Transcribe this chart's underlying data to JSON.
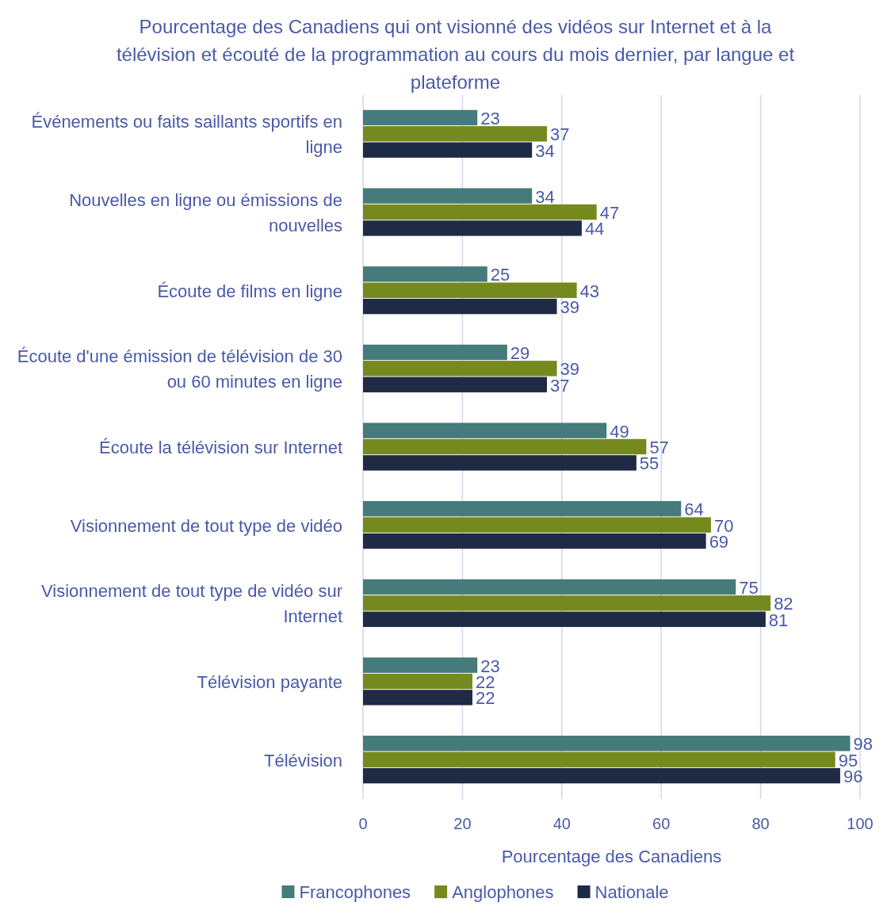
{
  "chart_data": {
    "type": "bar",
    "orientation": "horizontal",
    "title": "Pourcentage des Canadiens qui ont visionné des vidéos sur Internet et à la télévision et écouté de la programmation au cours du mois dernier, par langue et plateforme",
    "xlabel": "Pourcentage des Canadiens",
    "categories": [
      "Événements ou faits saillants sportifs en ligne",
      "Nouvelles en ligne ou émissions de nouvelles",
      "Écoute de films en ligne",
      "Écoute d'une émission de télévision de 30 ou 60 minutes en ligne",
      "Écoute la télévision sur Internet",
      "Visionnement de tout type de vidéo",
      "Visionnement de tout type de vidéo sur Internet",
      "Télévision payante",
      "Télévision"
    ],
    "series": [
      {
        "name": "Francophones",
        "color": "#457b7a",
        "values": [
          23,
          34,
          25,
          29,
          49,
          64,
          75,
          23,
          98
        ]
      },
      {
        "name": "Anglophones",
        "color": "#76891e",
        "values": [
          37,
          47,
          43,
          39,
          57,
          70,
          82,
          22,
          95
        ]
      },
      {
        "name": "Nationale",
        "color": "#1f2a44",
        "values": [
          34,
          44,
          39,
          37,
          55,
          69,
          81,
          22,
          96
        ]
      }
    ],
    "xlim": [
      0,
      100
    ],
    "xticks": [
      0,
      20,
      40,
      60,
      80,
      100
    ],
    "grid": "x",
    "legend": "bottom",
    "data_labels": true
  }
}
